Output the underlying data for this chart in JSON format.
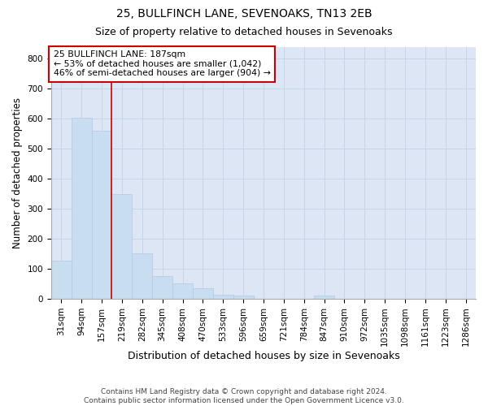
{
  "title1": "25, BULLFINCH LANE, SEVENOAKS, TN13 2EB",
  "title2": "Size of property relative to detached houses in Sevenoaks",
  "xlabel": "Distribution of detached houses by size in Sevenoaks",
  "ylabel": "Number of detached properties",
  "categories": [
    "31sqm",
    "94sqm",
    "157sqm",
    "219sqm",
    "282sqm",
    "345sqm",
    "408sqm",
    "470sqm",
    "533sqm",
    "596sqm",
    "659sqm",
    "721sqm",
    "784sqm",
    "847sqm",
    "910sqm",
    "972sqm",
    "1035sqm",
    "1098sqm",
    "1161sqm",
    "1223sqm",
    "1286sqm"
  ],
  "values": [
    128,
    603,
    560,
    348,
    152,
    75,
    52,
    34,
    14,
    12,
    0,
    0,
    0,
    10,
    0,
    0,
    0,
    0,
    0,
    0,
    0
  ],
  "bar_color": "#c9ddf0",
  "bar_edge_color": "#b0c8e4",
  "grid_color": "#c8d4e8",
  "background_color": "#dce6f5",
  "vline_x": 2.5,
  "vline_color": "#cc0000",
  "annotation_text": "25 BULLFINCH LANE: 187sqm\n← 53% of detached houses are smaller (1,042)\n46% of semi-detached houses are larger (904) →",
  "annotation_box_color": "#ffffff",
  "annotation_box_edge": "#cc0000",
  "ylim": [
    0,
    840
  ],
  "yticks": [
    0,
    100,
    200,
    300,
    400,
    500,
    600,
    700,
    800
  ],
  "footer": "Contains HM Land Registry data © Crown copyright and database right 2024.\nContains public sector information licensed under the Open Government Licence v3.0.",
  "title1_fontsize": 10,
  "title2_fontsize": 9,
  "xlabel_fontsize": 9,
  "ylabel_fontsize": 8.5,
  "tick_fontsize": 7.5,
  "footer_fontsize": 6.5,
  "annot_fontsize": 7.8
}
